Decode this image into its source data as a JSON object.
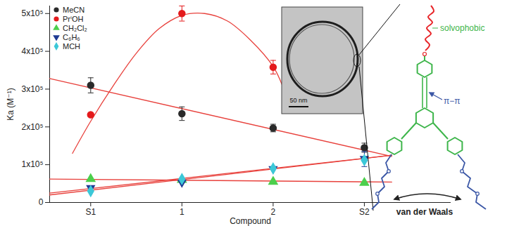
{
  "chart_data": {
    "type": "scatter",
    "xlabel": "Compound",
    "ylabel": "Ka (M⁻¹)",
    "x": [
      0,
      1,
      2,
      3
    ],
    "xlim": [
      -0.45,
      3.95
    ],
    "xticks": [
      {
        "value": 0,
        "label": "S1"
      },
      1,
      2,
      {
        "value": 3,
        "label": "S2"
      }
    ],
    "ylim": [
      0,
      520000
    ],
    "yticks": [
      0,
      {
        "value": 100000,
        "label": "1x10⁵"
      },
      {
        "value": 200000,
        "label": "2x10⁵"
      },
      {
        "value": 300000,
        "label": "3x10⁵"
      },
      {
        "value": 400000,
        "label": "4x10⁵"
      },
      {
        "value": 500000,
        "label": "5x10⁵"
      }
    ],
    "grid": false,
    "legend": "upper left",
    "series": [
      {
        "name": "MeCN",
        "color": "#2a2a2a",
        "marker": "circle",
        "values": [
          310000,
          235000,
          197000,
          145000
        ],
        "errors": [
          20000,
          18000,
          10000,
          12000
        ],
        "trend": {
          "x": [
            -0.45,
            3.3
          ],
          "values": [
            328000,
            122000
          ],
          "color": "#e8413c"
        }
      },
      {
        "name": "PrⁱOH",
        "color": "#e41a1c",
        "marker": "circle",
        "values": [
          232000,
          500000,
          358000,
          null
        ],
        "errors": [
          null,
          20000,
          18000,
          null
        ],
        "trend": {
          "x": [
            -0.2,
            0,
            0.25,
            0.5,
            0.75,
            1,
            1.25,
            1.5,
            1.75,
            2,
            2.1
          ],
          "values": [
            130000,
            215000,
            310000,
            395000,
            460000,
            495000,
            500000,
            480000,
            430000,
            360000,
            310000
          ],
          "color": "#e8413c"
        }
      },
      {
        "name": "CH₂Cl₂",
        "color": "#4ccf4c",
        "marker": "triangle",
        "values": [
          62000,
          60000,
          55000,
          52000
        ],
        "trend": {
          "x": [
            -0.45,
            3.3
          ],
          "values": [
            62000,
            54000
          ],
          "color": "#e8413c"
        }
      },
      {
        "name": "C₆H₆",
        "color": "#1f3a93",
        "marker": "triangle-down",
        "values": [
          38000,
          52000,
          88000,
          115000
        ],
        "errors": [
          null,
          null,
          null,
          20000
        ],
        "trend": {
          "x": [
            -0.45,
            3.3
          ],
          "values": [
            25000,
            125000
          ],
          "color": "#e8413c"
        }
      },
      {
        "name": "MCH",
        "color": "#3cc8d8",
        "marker": "diamond",
        "values": [
          30000,
          62000,
          90000,
          112000
        ],
        "trend": {
          "x": [
            -0.45,
            3.3
          ],
          "values": [
            20000,
            125000
          ],
          "color": "#e8413c"
        }
      }
    ]
  },
  "inset": {
    "scale_bar": "50 nm"
  },
  "diagram": {
    "solvophobic_label": "solvophobic",
    "pi_label": "π−π",
    "vdw_label": "van der Waals"
  }
}
